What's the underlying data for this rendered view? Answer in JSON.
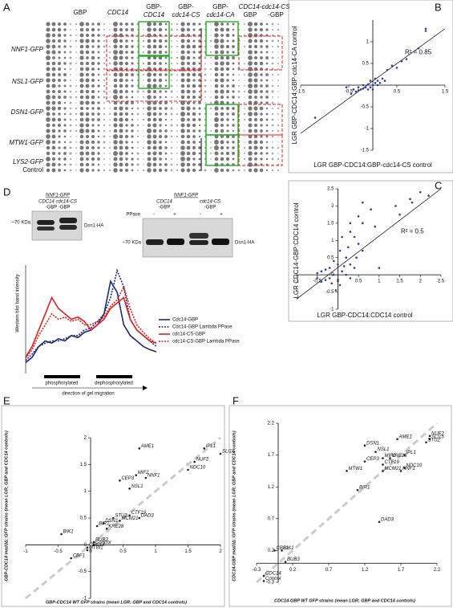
{
  "panels": {
    "A": {
      "label": "A",
      "columns": [
        "GBP",
        "CDC14",
        "GBP-",
        "CDC14",
        "GBP-",
        "cdc14-CS",
        "GBP-",
        "cdc14-CA",
        "CDC14-",
        "GBP",
        "cdc14-CS",
        "-GBP"
      ],
      "rows": [
        "NNF1-GFP",
        "NSL1-GFP",
        "DSN1-GFP",
        "MTW1-GFP",
        "LYS2-GFP",
        "Control"
      ]
    },
    "D": {
      "label": "D",
      "blot_left": {
        "strain": "NNF1-GFP",
        "genotypes": "CDC14 cdc14-CS",
        "suffix": "-GBP      -GBP",
        "size": "~70 KDa",
        "band": "Dsn1-HA"
      },
      "blot_right": {
        "strain": "NNF1-GFP",
        "g1": "CDC14",
        "g1s": "-GBP",
        "g2": "cdc14-CS",
        "g2s": "-GBP",
        "treatment": "PPase",
        "lanes": [
          "-",
          "+",
          "-",
          "+"
        ],
        "size": "~70 KDa",
        "band": "Dsn1-HA"
      }
    },
    "labels": [
      "B",
      "C",
      "E",
      "F"
    ]
  },
  "chart_data": [
    {
      "type": "scatter",
      "xlabel": "LGR GBP-CDC14:GBP-cdc14-CS control",
      "ylabel": "LGR GBP-CDC14:GBP-cdc14-CA control",
      "annotation": "R² = 0.85",
      "fit_line": true,
      "color": "#2b3f9e",
      "xlim": [
        -1.5,
        1.5
      ],
      "ylim": [
        -1.5,
        1.5
      ],
      "xticks": [
        -1.5,
        -0.5,
        0.5,
        1.5
      ],
      "yticks": [
        -1.5,
        -1,
        -0.5,
        0.5,
        1
      ],
      "x": [
        1.1,
        1.1,
        0.95,
        0.6,
        0.5,
        0.3,
        0.2,
        0.1,
        0.05,
        0,
        -0.05,
        -0.1,
        -0.15,
        -0.2,
        -0.25,
        -0.3,
        -0.35,
        -0.4,
        -0.3,
        -0.2,
        -0.1,
        0,
        0.1,
        0.15,
        0.25,
        -1.2,
        -0.55,
        -0.45,
        0.4,
        0.7,
        0.05,
        -0.05
      ],
      "y": [
        1.3,
        1.25,
        0.85,
        0.55,
        0.4,
        0.35,
        0.15,
        0.1,
        0.05,
        0,
        -0.05,
        0.02,
        -0.05,
        -0.08,
        -0.1,
        -0.12,
        -0.15,
        -0.1,
        -0.05,
        0,
        -0.1,
        -0.1,
        0,
        0.05,
        0.1,
        -0.75,
        -0.05,
        -0.2,
        0.45,
        0.6,
        0.15,
        0.1
      ]
    },
    {
      "type": "scatter",
      "xlabel": "LGR GBP-CDC14:CDC14 control",
      "ylabel": "LGR CDC14-GBP:CDC14 control",
      "annotation": "R² = 0.5",
      "fit_line": true,
      "color": "#2b3f9e",
      "xlim": [
        -1,
        2.5
      ],
      "ylim": [
        -1,
        2.5
      ],
      "xticks": [
        -1,
        -0.5,
        0,
        0.5,
        1,
        1.5,
        2,
        2.5
      ],
      "yticks": [
        -1,
        -0.5,
        0,
        0.5,
        1,
        1.5,
        2,
        2.5
      ],
      "x": [
        2.0,
        1.75,
        1.8,
        1.4,
        1.5,
        2.2,
        0.6,
        0.8,
        0.5,
        0.3,
        0.6,
        0.9,
        0.3,
        0.4,
        0.1,
        0.5,
        0.25,
        0.05,
        0.6,
        0.2,
        -0.1,
        0.45,
        0,
        -0.2,
        -0.3,
        -0.4,
        -0.5,
        -0.1,
        0.1,
        0.2,
        -0.2,
        -0.3,
        -0.4,
        0.3,
        0.4,
        0.05,
        -0.05,
        -0.15,
        -0.5,
        0.15,
        1.0,
        0.3
      ],
      "y": [
        2.4,
        2.2,
        2.1,
        2.0,
        1.75,
        2.3,
        2.1,
        1.9,
        1.7,
        1.5,
        1.5,
        1.4,
        1.25,
        1.1,
        1.1,
        0.9,
        0.8,
        0.7,
        0.7,
        0.5,
        0.4,
        0.5,
        0.3,
        0.2,
        0.15,
        0.1,
        0.05,
        0,
        0.1,
        0,
        -0.1,
        -0.15,
        -0.2,
        -0.1,
        0.2,
        -0.3,
        -0.45,
        -0.25,
        -0.1,
        0.25,
        0.2,
        0.3
      ]
    },
    {
      "type": "line",
      "ylabel": "Western blot band intensity",
      "annotations": [
        "phosphorylated",
        "dephosphorylated",
        "direction of gel migration"
      ],
      "ylim": [
        0,
        100
      ],
      "series": [
        {
          "name": "Cdc14-GBP",
          "color": "#1f2a78",
          "dashed": false,
          "values": [
            10,
            15,
            25,
            30,
            28,
            32,
            30,
            35,
            33,
            38,
            40,
            45,
            55,
            85,
            75,
            45,
            35,
            30,
            25,
            22,
            20
          ]
        },
        {
          "name": "Cdc14-GBP Lambda PPase",
          "color": "#1f2a78",
          "dashed": true,
          "values": [
            12,
            18,
            25,
            28,
            30,
            30,
            32,
            35,
            35,
            40,
            42,
            48,
            55,
            70,
            95,
            80,
            50,
            40,
            35,
            30,
            25
          ]
        },
        {
          "name": "cdc14-CS-GBP",
          "color": "#e02020",
          "dashed": false,
          "values": [
            15,
            25,
            40,
            55,
            70,
            60,
            55,
            50,
            52,
            48,
            40,
            45,
            50,
            60,
            65,
            70,
            50,
            40,
            35,
            30,
            28
          ]
        },
        {
          "name": "cdc14-CS-GBP Lambda PPase",
          "color": "#e02020",
          "dashed": true,
          "values": [
            14,
            22,
            35,
            45,
            55,
            50,
            52,
            48,
            50,
            45,
            45,
            48,
            52,
            62,
            68,
            80,
            60,
            45,
            38,
            32,
            28
          ]
        }
      ]
    },
    {
      "type": "scatter",
      "xlabel": "GBP-CDC14 WT GFP strains (mean LGR; GBP and CDC14 controls)",
      "ylabel": "GBP-CDC14 mad3Δ::GFP strains (mean LGR; GBP and CDC14 controls)",
      "identity_line": true,
      "color": "#222",
      "xlim": [
        -1,
        2
      ],
      "ylim": [
        -1,
        2
      ],
      "xticks": [
        -1,
        -0.5,
        0,
        0.5,
        1,
        1.5,
        2
      ],
      "yticks": [
        -1,
        -0.5,
        0,
        0.5,
        1,
        1.5,
        2
      ],
      "point_labels": [
        "AME1",
        "IPL1",
        "SLI15",
        "NUF2",
        "NDC10",
        "NNF1",
        "MIF2",
        "CEP3",
        "NSL1",
        "CTF19",
        "DAD3",
        "STU2",
        "MCM21",
        "DSN1",
        "BIR1",
        "KRE28",
        "BIK1",
        "BUB3",
        "Control",
        "CDC14",
        "MTW1",
        "CBF1"
      ],
      "x": [
        0.75,
        1.75,
        2.0,
        1.6,
        1.5,
        0.85,
        0.7,
        0.45,
        0.6,
        0.6,
        0.75,
        0.35,
        0.45,
        0.2,
        0.1,
        0.25,
        -0.45,
        0.05,
        0.05,
        -0.05,
        -0.05,
        -0.3
      ],
      "y": [
        1.8,
        1.8,
        1.7,
        1.55,
        1.4,
        1.25,
        1.3,
        1.2,
        1.05,
        0.55,
        0.5,
        0.5,
        0.45,
        0.4,
        0.35,
        0.3,
        0.2,
        0.05,
        0,
        -0.05,
        -0.1,
        -0.25
      ]
    },
    {
      "type": "scatter",
      "xlabel": "CDC14-GBP WT GFP strains (mean LGR; GBP and CDC14 controls)",
      "ylabel": "CDC14-GBP mad3Δ::GFP strains (mean LGR; GBP and CDC14 controls)",
      "identity_line": true,
      "color": "#222",
      "xlim": [
        -0.3,
        2.2
      ],
      "ylim": [
        -0.3,
        2.2
      ],
      "xticks": [
        -0.3,
        0.2,
        0.7,
        1.2,
        1.7,
        2.2
      ],
      "yticks": [
        -0.3,
        0.2,
        0.7,
        1.2,
        1.7,
        2.2
      ],
      "point_labels": [
        "NUF2",
        "SLI15",
        "STU2",
        "AME1",
        "DSN1",
        "NSL1",
        "IPL1",
        "KRE28",
        "MIF2",
        "CEP3",
        "CTF19",
        "NDC10",
        "MCM21",
        "NNF1",
        "MTW1",
        "BIR1",
        "DAD3",
        "CBF1",
        "BIK1",
        "BUB3",
        "CDC14",
        "Control"
      ],
      "x": [
        2.1,
        2.1,
        2.05,
        1.65,
        1.2,
        1.35,
        1.75,
        1.55,
        1.45,
        1.2,
        1.45,
        1.75,
        1.45,
        1.7,
        0.95,
        1.1,
        1.4,
        -0.05,
        0.05,
        0.1,
        -0.2,
        -0.2
      ],
      "y": [
        2.0,
        1.95,
        1.9,
        1.95,
        1.85,
        1.75,
        1.7,
        1.65,
        1.65,
        1.6,
        1.55,
        1.5,
        1.45,
        1.45,
        1.45,
        1.15,
        0.65,
        0.2,
        0.2,
        0.02,
        -0.2,
        -0.28
      ]
    }
  ]
}
